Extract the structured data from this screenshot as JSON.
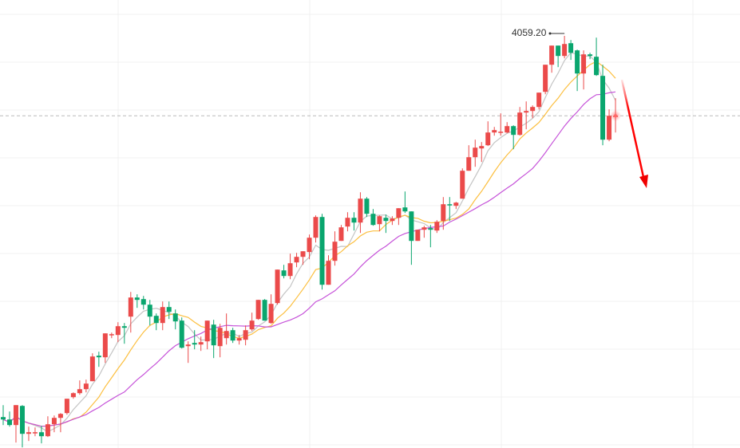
{
  "chart_data": {
    "type": "candlestick",
    "title": "",
    "xlabel": "",
    "ylabel": "",
    "grid": true,
    "colors": {
      "up": "#eb4a4a",
      "down": "#0aa66e",
      "ma5": "#c4c4c4",
      "ma10": "#fcbf3f",
      "ma20": "#c653d9",
      "last_price_line": "#f08a8a",
      "arrow": "#f00000",
      "grid": "#f0f0f0"
    },
    "moving_averages": [
      {
        "period": 5,
        "color_key": "ma5"
      },
      {
        "period": 10,
        "color_key": "ma10"
      },
      {
        "period": 20,
        "color_key": "ma20"
      }
    ],
    "annotations": {
      "max_label": "4059.20",
      "last_price": 3959,
      "trend_arrow": "down"
    },
    "candles_ohlc": [
      [
        3581,
        3596,
        3571,
        3578
      ],
      [
        3578,
        3588,
        3569,
        3571
      ],
      [
        3571,
        3596,
        3549,
        3596
      ],
      [
        3595,
        3596,
        3543,
        3560
      ],
      [
        3560,
        3569,
        3551,
        3562
      ],
      [
        3561,
        3568,
        3557,
        3562
      ],
      [
        3562,
        3570,
        3548,
        3557
      ],
      [
        3557,
        3582,
        3556,
        3572
      ],
      [
        3572,
        3583,
        3562,
        3580
      ],
      [
        3580,
        3586,
        3562,
        3585
      ],
      [
        3586,
        3604,
        3584,
        3604
      ],
      [
        3606,
        3612,
        3604,
        3611
      ],
      [
        3611,
        3627,
        3609,
        3616
      ],
      [
        3616,
        3628,
        3612,
        3623
      ],
      [
        3626,
        3661,
        3626,
        3657
      ],
      [
        3658,
        3663,
        3644,
        3656
      ],
      [
        3656,
        3686,
        3649,
        3686
      ],
      [
        3684,
        3687,
        3680,
        3685
      ],
      [
        3684,
        3700,
        3675,
        3695
      ],
      [
        3695,
        3699,
        3673,
        3693
      ],
      [
        3707,
        3738,
        3687,
        3731
      ],
      [
        3731,
        3735,
        3718,
        3728
      ],
      [
        3729,
        3733,
        3716,
        3722
      ],
      [
        3722,
        3728,
        3696,
        3707
      ],
      [
        3708,
        3711,
        3690,
        3699
      ],
      [
        3699,
        3726,
        3690,
        3719
      ],
      [
        3719,
        3726,
        3704,
        3713
      ],
      [
        3711,
        3716,
        3691,
        3701
      ],
      [
        3702,
        3706,
        3667,
        3668
      ],
      [
        3670,
        3676,
        3649,
        3672
      ],
      [
        3674,
        3690,
        3666,
        3672
      ],
      [
        3672,
        3682,
        3664,
        3675
      ],
      [
        3676,
        3702,
        3666,
        3702
      ],
      [
        3697,
        3703,
        3655,
        3671
      ],
      [
        3670,
        3698,
        3656,
        3693
      ],
      [
        3680,
        3711,
        3672,
        3689
      ],
      [
        3690,
        3693,
        3674,
        3677
      ],
      [
        3677,
        3684,
        3672,
        3680
      ],
      [
        3678,
        3696,
        3671,
        3690
      ],
      [
        3691,
        3712,
        3689,
        3702
      ],
      [
        3704,
        3728,
        3703,
        3728
      ],
      [
        3728,
        3729,
        3702,
        3702
      ],
      [
        3699,
        3735,
        3698,
        3723
      ],
      [
        3724,
        3766,
        3722,
        3766
      ],
      [
        3765,
        3772,
        3755,
        3758
      ],
      [
        3758,
        3786,
        3754,
        3774
      ],
      [
        3775,
        3787,
        3769,
        3782
      ],
      [
        3782,
        3789,
        3772,
        3789
      ],
      [
        3788,
        3810,
        3779,
        3806
      ],
      [
        3806,
        3834,
        3800,
        3832
      ],
      [
        3832,
        3836,
        3741,
        3747
      ],
      [
        3747,
        3784,
        3747,
        3777
      ],
      [
        3777,
        3814,
        3771,
        3801
      ],
      [
        3802,
        3822,
        3802,
        3819
      ],
      [
        3820,
        3838,
        3814,
        3831
      ],
      [
        3831,
        3838,
        3815,
        3825
      ],
      [
        3825,
        3863,
        3812,
        3855
      ],
      [
        3855,
        3857,
        3832,
        3836
      ],
      [
        3836,
        3842,
        3821,
        3822
      ],
      [
        3823,
        3834,
        3814,
        3833
      ],
      [
        3831,
        3835,
        3812,
        3827
      ],
      [
        3827,
        3833,
        3822,
        3830
      ],
      [
        3831,
        3843,
        3822,
        3843
      ],
      [
        3844,
        3864,
        3837,
        3839
      ],
      [
        3839,
        3839,
        3772,
        3802
      ],
      [
        3802,
        3816,
        3802,
        3816
      ],
      [
        3816,
        3821,
        3806,
        3819
      ],
      [
        3818,
        3822,
        3794,
        3816
      ],
      [
        3815,
        3828,
        3812,
        3826
      ],
      [
        3827,
        3857,
        3816,
        3848
      ],
      [
        3848,
        3857,
        3827,
        3847
      ],
      [
        3846,
        3851,
        3842,
        3850
      ],
      [
        3855,
        3893,
        3855,
        3890
      ],
      [
        3890,
        3922,
        3890,
        3907
      ],
      [
        3907,
        3929,
        3895,
        3919
      ],
      [
        3918,
        3926,
        3901,
        3921
      ],
      [
        3922,
        3952,
        3921,
        3938
      ],
      [
        3938,
        3945,
        3934,
        3941
      ],
      [
        3939,
        3962,
        3934,
        3939
      ],
      [
        3938,
        3951,
        3937,
        3946
      ],
      [
        3946,
        3947,
        3917,
        3935
      ],
      [
        3935,
        3970,
        3934,
        3963
      ],
      [
        3963,
        3977,
        3942,
        3965
      ],
      [
        3965,
        3972,
        3956,
        3970
      ],
      [
        3970,
        3988,
        3967,
        3988
      ],
      [
        3989,
        4023,
        3986,
        4023
      ],
      [
        4023,
        4047,
        4013,
        4047
      ],
      [
        4047,
        4047,
        4020,
        4034
      ],
      [
        4034,
        4059.2,
        4031,
        4049
      ],
      [
        4050,
        4054,
        4029,
        4038
      ],
      [
        4041,
        4042,
        3990,
        4012
      ],
      [
        4012,
        4041,
        3992,
        4036
      ],
      [
        4036,
        4038,
        4030,
        4034
      ],
      [
        4033,
        4057,
        4009,
        4010
      ],
      [
        4009,
        4023,
        3922,
        3929
      ],
      [
        3929,
        3967,
        3927,
        3959
      ],
      [
        3959,
        3981,
        3938,
        3959
      ]
    ]
  }
}
